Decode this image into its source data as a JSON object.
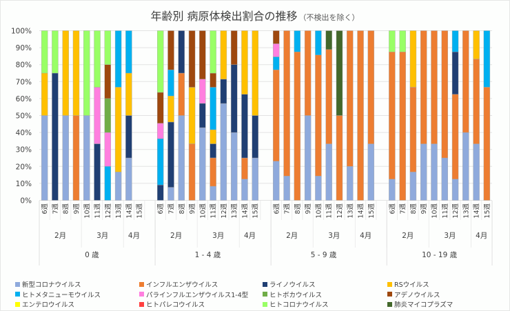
{
  "title": "年齢別 病原体検出割合の推移",
  "subtitle": "（不検出を除く）",
  "chart_data": {
    "type": "bar",
    "stacked": "percent",
    "title": "年齢別 病原体検出割合の推移（不検出を除く）",
    "ylim": [
      0,
      100
    ],
    "yticks": [
      "0%",
      "10%",
      "20%",
      "30%",
      "40%",
      "50%",
      "60%",
      "70%",
      "80%",
      "90%",
      "100%"
    ],
    "grid": true,
    "legend_position": "bottom",
    "weeks": [
      "6週",
      "7週",
      "8週",
      "9週",
      "10週",
      "11週",
      "12週",
      "13週",
      "14週",
      "15週"
    ],
    "months": [
      {
        "label": "2月",
        "weeks": 4
      },
      {
        "label": "3月",
        "weeks": 4
      },
      {
        "label": "4月",
        "weeks": 2
      }
    ],
    "groups": [
      "0 歳",
      "1 - 4 歳",
      "5 - 9 歳",
      "10 - 19 歳"
    ],
    "series": [
      {
        "name": "新型コロナウイルス",
        "color": "#8faadc"
      },
      {
        "name": "インフルエンザウイルス",
        "color": "#ed7d31"
      },
      {
        "name": "ライノウイルス",
        "color": "#203f73"
      },
      {
        "name": "RSウイルス",
        "color": "#ffc000"
      },
      {
        "name": "ヒトメタニューモウイルス",
        "color": "#00b0f0"
      },
      {
        "name": "パラインフルエンザウイルス1-4型",
        "color": "#ff7fdf"
      },
      {
        "name": "ヒトボカウイルス",
        "color": "#70ad47"
      },
      {
        "name": "アデノウイルス",
        "color": "#9e480e"
      },
      {
        "name": "エンテロウイルス",
        "color": "#ffff00"
      },
      {
        "name": "ヒトパレコウイルス",
        "color": "#ff4040"
      },
      {
        "name": "ヒトコロナウイルス",
        "color": "#99ff66"
      },
      {
        "name": "肺炎マイコプラズマ",
        "color": "#43682b"
      }
    ],
    "values_percent": {
      "0 歳": [
        [
          50,
          0,
          0,
          25,
          0,
          0,
          0,
          0,
          0,
          0,
          25,
          0
        ],
        [
          0,
          0,
          75,
          0,
          0,
          0,
          0,
          0,
          0,
          0,
          25,
          0
        ],
        [
          50,
          0,
          0,
          50,
          0,
          0,
          0,
          0,
          0,
          0,
          0,
          0
        ],
        [
          0,
          50,
          0,
          50,
          0,
          0,
          0,
          0,
          0,
          0,
          0,
          0
        ],
        [
          50,
          0,
          0,
          0,
          0,
          0,
          0,
          0,
          0,
          0,
          50,
          0
        ],
        [
          0,
          0,
          33.3,
          0,
          0,
          33.3,
          0,
          0,
          0,
          0,
          33.3,
          0
        ],
        [
          0,
          0,
          0,
          0,
          20,
          20,
          20,
          20,
          0,
          0,
          20,
          0
        ],
        [
          16.7,
          0,
          0,
          50,
          33.3,
          0,
          0,
          0,
          0,
          0,
          0,
          0
        ],
        [
          25,
          0,
          25,
          25,
          25,
          0,
          0,
          0,
          0,
          0,
          0,
          0
        ],
        null
      ],
      "1 - 4 歳": [
        [
          0,
          0,
          9.1,
          0,
          27.3,
          9.1,
          0,
          18.2,
          0,
          0,
          36.4,
          0
        ],
        [
          7.7,
          0,
          38.5,
          15.4,
          15.4,
          0,
          0,
          23.1,
          0,
          0,
          0,
          0
        ],
        [
          50,
          25,
          25,
          0,
          0,
          0,
          0,
          0,
          0,
          0,
          0,
          0
        ],
        [
          0,
          33.3,
          0,
          33.3,
          0,
          0,
          0,
          33.3,
          0,
          0,
          0,
          0
        ],
        [
          42.9,
          0,
          14.3,
          0,
          0,
          14.3,
          0,
          28.6,
          0,
          0,
          0,
          0
        ],
        [
          8.3,
          16.7,
          8.3,
          8.3,
          25,
          0,
          0,
          8.3,
          0,
          0,
          25,
          0
        ],
        [
          57.1,
          0,
          14.3,
          28.6,
          0,
          0,
          0,
          0,
          0,
          0,
          0,
          0
        ],
        [
          40,
          0,
          40,
          0,
          0,
          0,
          0,
          20,
          0,
          0,
          0,
          0
        ],
        [
          12.5,
          12.5,
          37.5,
          37.5,
          0,
          0,
          0,
          0,
          0,
          0,
          0,
          0
        ],
        [
          25,
          0,
          25,
          50,
          0,
          0,
          0,
          0,
          0,
          0,
          0,
          0
        ]
      ],
      "5 - 9 歳": [
        [
          23.1,
          53.8,
          0,
          0,
          7.7,
          7.7,
          0,
          7.7,
          0,
          0,
          0,
          0
        ],
        [
          14.3,
          85.7,
          0,
          0,
          0,
          0,
          0,
          0,
          0,
          0,
          0,
          0
        ],
        [
          0,
          87.5,
          0,
          0,
          12.5,
          0,
          0,
          0,
          0,
          0,
          0,
          0
        ],
        [
          50,
          50,
          0,
          0,
          0,
          0,
          0,
          0,
          0,
          0,
          0,
          0
        ],
        [
          14.3,
          71.4,
          0,
          0,
          14.3,
          0,
          0,
          0,
          0,
          0,
          0,
          0
        ],
        [
          33.3,
          55.6,
          0,
          0,
          0,
          0,
          0,
          0,
          0,
          0,
          0,
          11.1
        ],
        [
          0,
          50,
          0,
          0,
          0,
          0,
          0,
          0,
          0,
          0,
          0,
          50
        ],
        [
          20,
          80,
          0,
          0,
          0,
          0,
          0,
          0,
          0,
          0,
          0,
          0
        ],
        [
          0,
          100,
          0,
          0,
          0,
          0,
          0,
          0,
          0,
          0,
          0,
          0
        ],
        [
          33.3,
          66.7,
          0,
          0,
          0,
          0,
          0,
          0,
          0,
          0,
          0,
          0
        ]
      ],
      "10 - 19 歳": [
        [
          12.5,
          75,
          0,
          0,
          0,
          0,
          0,
          0,
          0,
          0,
          12.5,
          0
        ],
        [
          0,
          87.5,
          0,
          0,
          0,
          0,
          0,
          0,
          0,
          0,
          12.5,
          0
        ],
        [
          16.7,
          50,
          0,
          33.3,
          0,
          0,
          0,
          0,
          0,
          0,
          0,
          0
        ],
        [
          33.3,
          66.7,
          0,
          0,
          0,
          0,
          0,
          0,
          0,
          0,
          0,
          0
        ],
        [
          33.3,
          66.7,
          0,
          0,
          0,
          0,
          0,
          0,
          0,
          0,
          0,
          0
        ],
        [
          25,
          75,
          0,
          0,
          0,
          0,
          0,
          0,
          0,
          0,
          0,
          0
        ],
        [
          12.5,
          50,
          25,
          0,
          12.5,
          0,
          0,
          0,
          0,
          0,
          0,
          0
        ],
        [
          40,
          60,
          0,
          0,
          0,
          0,
          0,
          0,
          0,
          0,
          0,
          0
        ],
        [
          33.3,
          50,
          0,
          16.7,
          0,
          0,
          0,
          0,
          0,
          0,
          0,
          0
        ],
        [
          0,
          66.7,
          0,
          0,
          33.3,
          0,
          0,
          0,
          0,
          0,
          0,
          0
        ]
      ]
    }
  }
}
